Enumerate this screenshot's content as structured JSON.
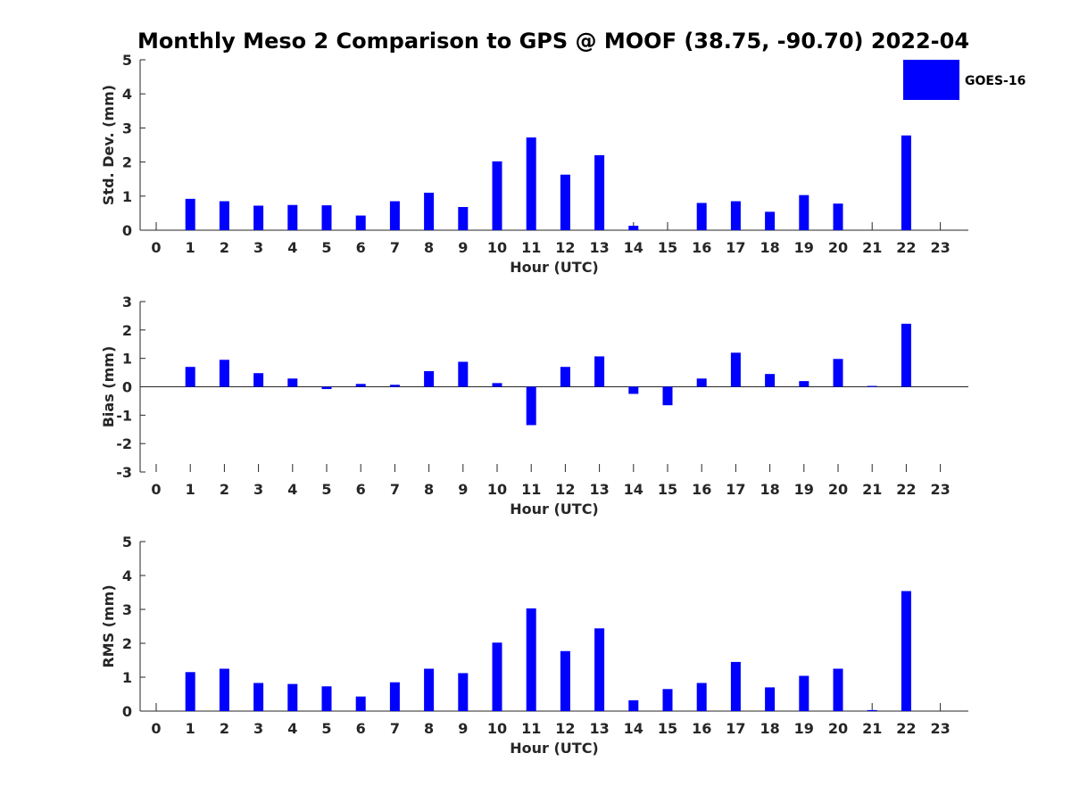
{
  "title": "Monthly Meso 2 Comparison to GPS @ MOOF (38.75, -90.70) 2022-04",
  "bar_color": "#0000ff",
  "legend": {
    "label": "GOES-16",
    "placement": "top-right"
  },
  "chart_data": [
    {
      "type": "bar",
      "series": [
        {
          "name": "GOES-16",
          "values": [
            0,
            0.92,
            0.85,
            0.72,
            0.74,
            0.73,
            0.43,
            0.85,
            1.1,
            0.68,
            2.02,
            2.72,
            1.63,
            2.2,
            0.13,
            0,
            0.8,
            0.85,
            0.54,
            1.03,
            0.78,
            0,
            2.78,
            0
          ]
        }
      ],
      "categories": [
        "0",
        "1",
        "2",
        "3",
        "4",
        "5",
        "6",
        "7",
        "8",
        "9",
        "10",
        "11",
        "12",
        "13",
        "14",
        "15",
        "16",
        "17",
        "18",
        "19",
        "20",
        "21",
        "22",
        "23"
      ],
      "xlabel": "Hour (UTC)",
      "ylabel": "Std. Dev. (mm)",
      "ylim": [
        0,
        5
      ],
      "yticks": [
        "0",
        "1",
        "2",
        "3",
        "4",
        "5"
      ]
    },
    {
      "type": "bar",
      "series": [
        {
          "name": "GOES-16",
          "values": [
            0,
            0.7,
            0.95,
            0.48,
            0.29,
            -0.08,
            0.1,
            0.07,
            0.55,
            0.88,
            0.13,
            -1.35,
            0.7,
            1.07,
            -0.25,
            -0.65,
            0.29,
            1.2,
            0.45,
            0.2,
            0.98,
            0.03,
            2.22,
            0
          ]
        }
      ],
      "categories": [
        "0",
        "1",
        "2",
        "3",
        "4",
        "5",
        "6",
        "7",
        "8",
        "9",
        "10",
        "11",
        "12",
        "13",
        "14",
        "15",
        "16",
        "17",
        "18",
        "19",
        "20",
        "21",
        "22",
        "23"
      ],
      "xlabel": "Hour (UTC)",
      "ylabel": "Bias (mm)",
      "ylim": [
        -3,
        3
      ],
      "yticks": [
        "-3",
        "-2",
        "-1",
        "0",
        "1",
        "2",
        "3"
      ]
    },
    {
      "type": "bar",
      "series": [
        {
          "name": "GOES-16",
          "values": [
            0,
            1.15,
            1.25,
            0.83,
            0.8,
            0.73,
            0.43,
            0.85,
            1.25,
            1.12,
            2.02,
            3.03,
            1.77,
            2.44,
            0.32,
            0.65,
            0.83,
            1.45,
            0.7,
            1.04,
            1.25,
            0.03,
            3.54,
            0
          ]
        }
      ],
      "categories": [
        "0",
        "1",
        "2",
        "3",
        "4",
        "5",
        "6",
        "7",
        "8",
        "9",
        "10",
        "11",
        "12",
        "13",
        "14",
        "15",
        "16",
        "17",
        "18",
        "19",
        "20",
        "21",
        "22",
        "23"
      ],
      "xlabel": "Hour (UTC)",
      "ylabel": "RMS (mm)",
      "ylim": [
        0,
        5
      ],
      "yticks": [
        "0",
        "1",
        "2",
        "3",
        "4",
        "5"
      ]
    }
  ]
}
